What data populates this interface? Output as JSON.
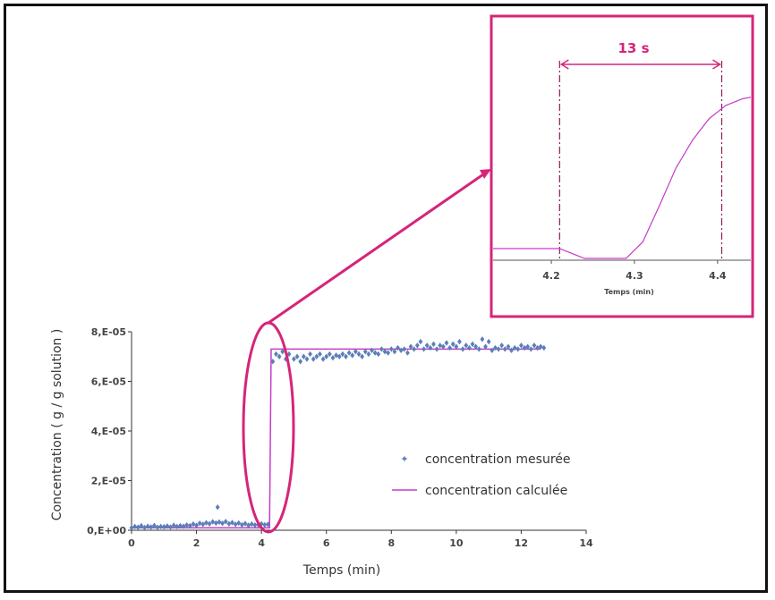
{
  "colors": {
    "accent": "#d6247a",
    "measured": "#5b7fb8",
    "calculated": "#c43cc8",
    "axis": "#333333"
  },
  "chart_data": [
    {
      "type": "scatter",
      "xlabel": "Temps (min)",
      "ylabel": "Concentration ( g / g solution )",
      "xlim": [
        0,
        14
      ],
      "ylim": [
        0,
        8e-05
      ],
      "xticks": [
        "0",
        "2",
        "4",
        "6",
        "8",
        "10",
        "12",
        "14"
      ],
      "yticks": [
        "0,E+00",
        "2,E-05",
        "4,E-05",
        "6,E-05",
        "8,E-05"
      ],
      "legend": "right",
      "series": [
        {
          "name": "concentration mesurée",
          "kind": "markers",
          "x": [
            0.0,
            0.1,
            0.2,
            0.3,
            0.4,
            0.5,
            0.6,
            0.7,
            0.8,
            0.9,
            1.0,
            1.1,
            1.2,
            1.3,
            1.4,
            1.5,
            1.6,
            1.7,
            1.8,
            1.9,
            2.0,
            2.1,
            2.2,
            2.3,
            2.4,
            2.5,
            2.6,
            2.65,
            2.7,
            2.8,
            2.9,
            3.0,
            3.1,
            3.2,
            3.3,
            3.4,
            3.5,
            3.6,
            3.7,
            3.8,
            3.9,
            4.0,
            4.1,
            4.2,
            4.35,
            4.45,
            4.55,
            4.65,
            4.75,
            4.85,
            5.0,
            5.1,
            5.2,
            5.3,
            5.4,
            5.5,
            5.6,
            5.7,
            5.8,
            5.9,
            6.0,
            6.1,
            6.2,
            6.3,
            6.4,
            6.5,
            6.6,
            6.7,
            6.8,
            6.9,
            7.0,
            7.1,
            7.2,
            7.3,
            7.4,
            7.5,
            7.6,
            7.7,
            7.8,
            7.9,
            8.0,
            8.1,
            8.2,
            8.3,
            8.4,
            8.5,
            8.6,
            8.7,
            8.8,
            8.9,
            9.0,
            9.1,
            9.2,
            9.3,
            9.4,
            9.5,
            9.6,
            9.7,
            9.8,
            9.9,
            10.0,
            10.1,
            10.2,
            10.3,
            10.4,
            10.5,
            10.6,
            10.7,
            10.8,
            10.9,
            11.0,
            11.1,
            11.2,
            11.3,
            11.4,
            11.5,
            11.6,
            11.7,
            11.8,
            11.9,
            12.0,
            12.1,
            12.2,
            12.3,
            12.4,
            12.5,
            12.6,
            12.7
          ],
          "y": [
            1e-06,
            1.5e-06,
            1.2e-06,
            1.8e-06,
            1.1e-06,
            1.6e-06,
            1.3e-06,
            1.9e-06,
            1.2e-06,
            1.5e-06,
            1.4e-06,
            1.7e-06,
            1.3e-06,
            2e-06,
            1.5e-06,
            1.8e-06,
            1.6e-06,
            2.1e-06,
            1.8e-06,
            2.5e-06,
            2e-06,
            2.8e-06,
            2.4e-06,
            3e-06,
            2.6e-06,
            3.4e-06,
            2.9e-06,
            9.3e-06,
            3.3e-06,
            2.8e-06,
            3.5e-06,
            2.6e-06,
            3.1e-06,
            2.4e-06,
            2.9e-06,
            2.2e-06,
            2.7e-06,
            2e-06,
            2.5e-06,
            2.1e-06,
            2.3e-06,
            2.6e-06,
            2.2e-06,
            2.4e-06,
            6.8e-05,
            7.1e-05,
            7e-05,
            7.2e-05,
            6.9e-05,
            7.1e-05,
            6.9e-05,
            7e-05,
            6.8e-05,
            7e-05,
            6.9e-05,
            7.1e-05,
            6.9e-05,
            7e-05,
            7.1e-05,
            6.9e-05,
            7e-05,
            7.1e-05,
            6.95e-05,
            7.05e-05,
            7e-05,
            7.1e-05,
            7e-05,
            7.15e-05,
            7.05e-05,
            7.2e-05,
            7.1e-05,
            7e-05,
            7.2e-05,
            7.1e-05,
            7.25e-05,
            7.15e-05,
            7.1e-05,
            7.3e-05,
            7.2e-05,
            7.15e-05,
            7.3e-05,
            7.2e-05,
            7.35e-05,
            7.25e-05,
            7.3e-05,
            7.15e-05,
            7.4e-05,
            7.3e-05,
            7.45e-05,
            7.6e-05,
            7.3e-05,
            7.45e-05,
            7.35e-05,
            7.5e-05,
            7.3e-05,
            7.45e-05,
            7.4e-05,
            7.55e-05,
            7.35e-05,
            7.5e-05,
            7.4e-05,
            7.6e-05,
            7.3e-05,
            7.45e-05,
            7.35e-05,
            7.5e-05,
            7.4e-05,
            7.3e-05,
            7.7e-05,
            7.4e-05,
            7.6e-05,
            7.25e-05,
            7.35e-05,
            7.3e-05,
            7.45e-05,
            7.3e-05,
            7.4e-05,
            7.25e-05,
            7.35e-05,
            7.3e-05,
            7.45e-05,
            7.35e-05,
            7.4e-05,
            7.3e-05,
            7.45e-05,
            7.35e-05,
            7.4e-05,
            7.35e-05
          ]
        },
        {
          "name": "concentration calculée",
          "kind": "line",
          "x": [
            0,
            4.2,
            4.25,
            4.3,
            4.42,
            12.6
          ],
          "y": [
            1e-06,
            1e-06,
            1e-06,
            7.3e-05,
            7.3e-05,
            7.3e-05
          ]
        }
      ]
    },
    {
      "type": "line",
      "xlabel": "Temps (min)",
      "ylabel": "",
      "xlim": [
        4.13,
        4.44
      ],
      "xticks": [
        "4.2",
        "4.3",
        "4.4"
      ],
      "series": [
        {
          "x": [
            4.13,
            4.21,
            4.24,
            4.29,
            4.31,
            4.33,
            4.35,
            4.37,
            4.39,
            4.41,
            4.43,
            4.44
          ],
          "y": [
            0.06,
            0.06,
            0.0,
            0.0,
            0.1,
            0.32,
            0.55,
            0.72,
            0.85,
            0.93,
            0.97,
            0.98
          ]
        }
      ]
    }
  ],
  "annotation": {
    "label": "13 s",
    "from": 4.21,
    "to": 4.405
  }
}
